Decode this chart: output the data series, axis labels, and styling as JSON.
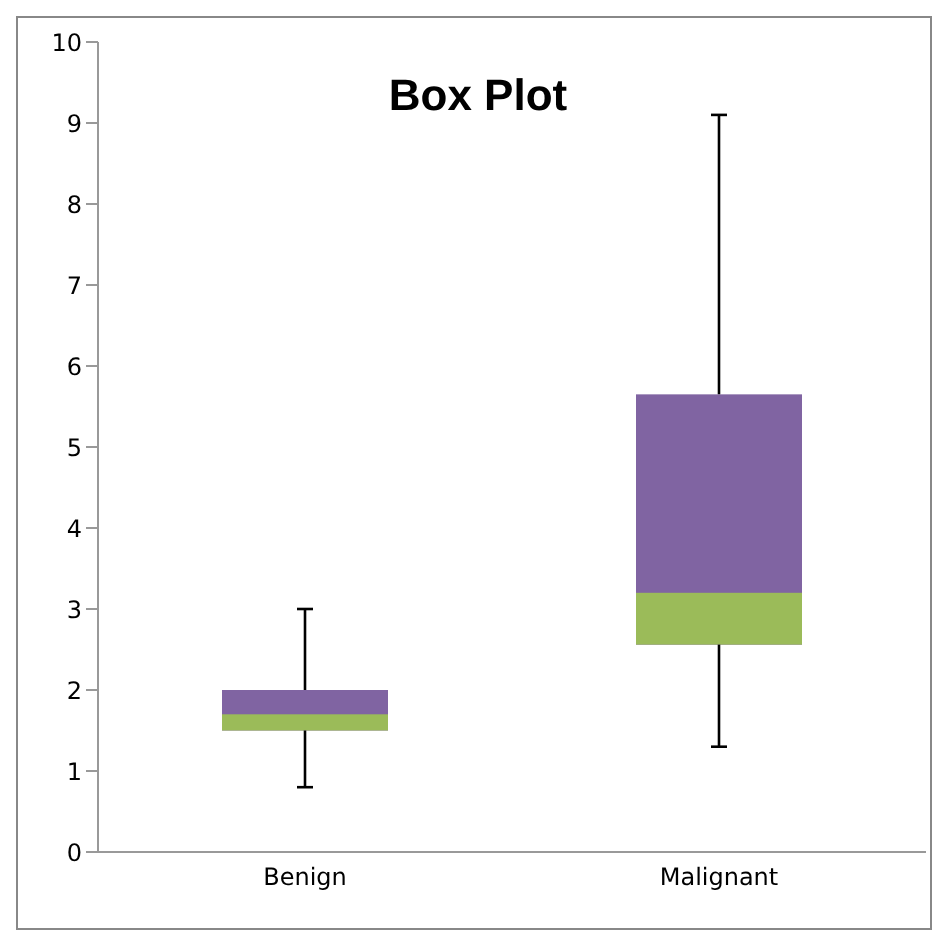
{
  "chart_data": {
    "type": "box",
    "title": "Box Plot",
    "categories": [
      "Benign",
      "Malignant"
    ],
    "series": [
      {
        "color": "#8064a2",
        "boxes": [
          {
            "low": 0.8,
            "q1": 1.5,
            "median": 1.7,
            "q3": 2.0,
            "high": 3.0
          },
          {
            "low": 1.3,
            "q1": 2.56,
            "median": 3.2,
            "q3": 5.65,
            "high": 9.1
          }
        ]
      }
    ],
    "colors": [
      "#9bbb59",
      "#9bbb59"
    ],
    "ylim": [
      0,
      10
    ],
    "yticks": [
      0,
      1,
      2,
      3,
      4,
      5,
      6,
      7,
      8,
      9,
      10
    ]
  }
}
